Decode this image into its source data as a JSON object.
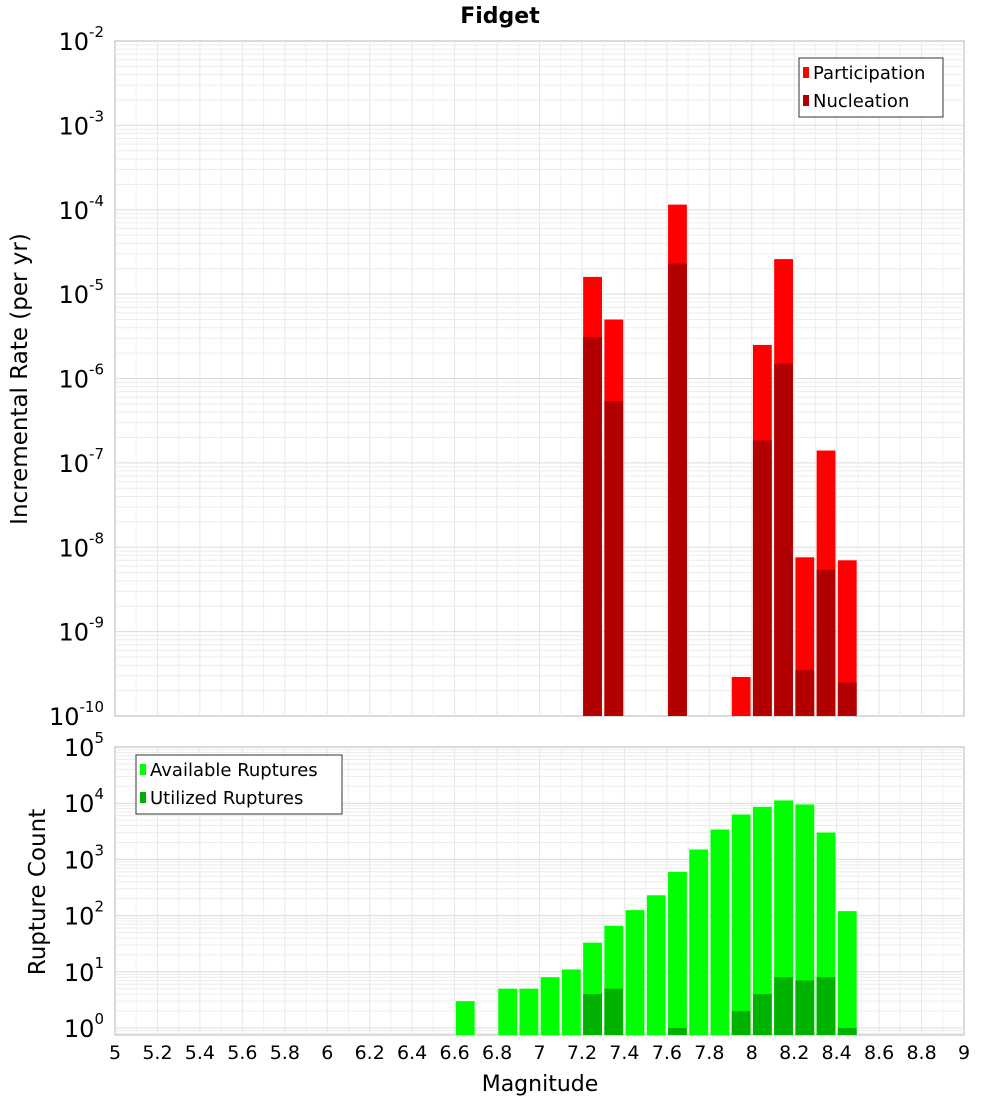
{
  "title": "Fidget",
  "xlabel": "Magnitude",
  "x_ticks": [
    "5",
    "5.2",
    "5.4",
    "5.6",
    "5.8",
    "6",
    "6.2",
    "6.4",
    "6.6",
    "6.8",
    "7",
    "7.2",
    "7.4",
    "7.6",
    "7.8",
    "8",
    "8.2",
    "8.4",
    "8.6",
    "8.8",
    "9"
  ],
  "chart_data": [
    {
      "type": "bar",
      "title": "Fidget",
      "xlabel": "",
      "ylabel": "Incremental Rate (per yr)",
      "yscale": "log",
      "ylim": [
        1e-10,
        0.01
      ],
      "xlim": [
        5,
        9
      ],
      "bin_width": 0.1,
      "grid": true,
      "legend_placement": "top-right",
      "y_tick_exponents": [
        "-10",
        "-9",
        "-8",
        "-7",
        "-6",
        "-5",
        "-4",
        "-3",
        "-2"
      ],
      "series": [
        {
          "name": "Participation",
          "color": "#ff0000",
          "x": [
            7.25,
            7.35,
            7.65,
            7.95,
            8.05,
            8.15,
            8.25,
            8.35,
            8.45
          ],
          "values": [
            1.6e-05,
            5e-06,
            0.000115,
            2.9e-10,
            2.5e-06,
            2.6e-05,
            7.6e-09,
            1.4e-07,
            7e-09
          ]
        },
        {
          "name": "Nucleation",
          "color": "#b20000",
          "x": [
            7.25,
            7.35,
            7.65,
            8.05,
            8.15,
            8.25,
            8.35,
            8.45
          ],
          "values": [
            3.1e-06,
            5.4e-07,
            2.3e-05,
            1.85e-07,
            1.5e-06,
            3.5e-10,
            5.4e-09,
            2.5e-10
          ]
        }
      ]
    },
    {
      "type": "bar",
      "xlabel": "Magnitude",
      "ylabel": "Rupture Count",
      "yscale": "log",
      "ylim": [
        0.75,
        100000
      ],
      "xlim": [
        5,
        9
      ],
      "bin_width": 0.1,
      "grid": true,
      "legend_placement": "top-left",
      "y_tick_exponents": [
        "0",
        "1",
        "2",
        "3",
        "4",
        "5"
      ],
      "series": [
        {
          "name": "Available Ruptures",
          "color": "#00ff00",
          "x": [
            6.65,
            6.85,
            6.95,
            7.05,
            7.15,
            7.25,
            7.35,
            7.45,
            7.55,
            7.65,
            7.75,
            7.85,
            7.95,
            8.05,
            8.15,
            8.25,
            8.35,
            8.45
          ],
          "values": [
            3,
            5,
            5,
            8,
            11,
            33,
            66,
            125,
            230,
            600,
            1500,
            3400,
            6300,
            8600,
            11200,
            9500,
            3000,
            120
          ]
        },
        {
          "name": "Utilized Ruptures",
          "color": "#00b200",
          "x": [
            7.25,
            7.35,
            7.65,
            7.95,
            8.05,
            8.15,
            8.25,
            8.35,
            8.45
          ],
          "values": [
            4,
            5,
            1,
            2,
            4,
            8,
            7,
            8,
            1
          ]
        }
      ]
    }
  ]
}
